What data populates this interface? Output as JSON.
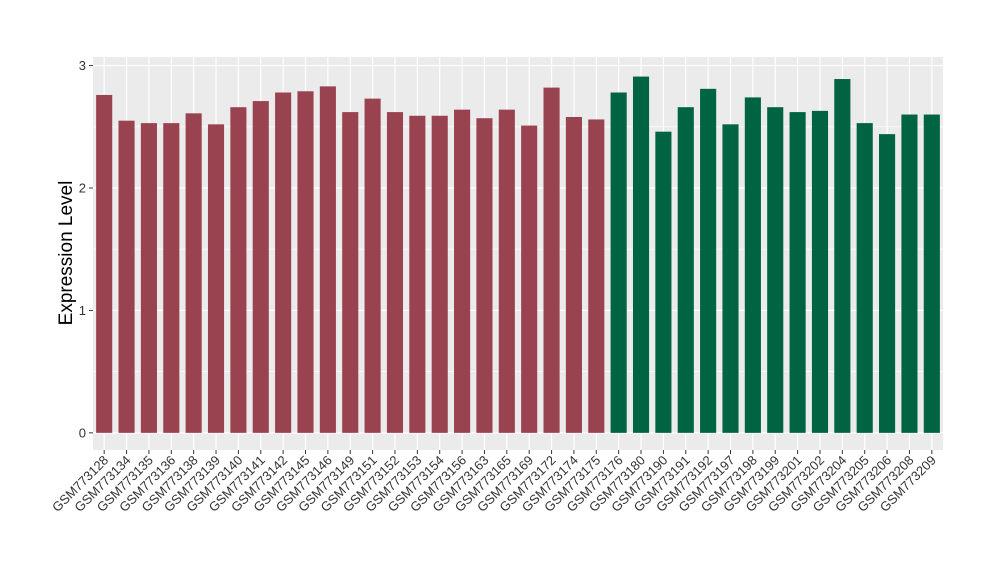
{
  "chart_data": {
    "type": "bar",
    "ylabel": "Expression Level",
    "xlabel": "",
    "ylim": [
      -0.14,
      3.07
    ],
    "yticks": [
      0,
      1,
      2,
      3
    ],
    "ytick_labels": [
      "0",
      "1",
      "2",
      "3"
    ],
    "grid": true,
    "legend": "none",
    "colors": {
      "group1": "#9a4350",
      "group2": "#006341",
      "panel_bg": "#ebebeb",
      "grid": "#ffffff"
    },
    "categories": [
      "GSM773128",
      "GSM773134",
      "GSM773135",
      "GSM773136",
      "GSM773138",
      "GSM773139",
      "GSM773140",
      "GSM773141",
      "GSM773142",
      "GSM773145",
      "GSM773146",
      "GSM773149",
      "GSM773151",
      "GSM773152",
      "GSM773153",
      "GSM773154",
      "GSM773156",
      "GSM773163",
      "GSM773165",
      "GSM773169",
      "GSM773172",
      "GSM773174",
      "GSM773175",
      "GSM773176",
      "GSM773180",
      "GSM773190",
      "GSM773191",
      "GSM773192",
      "GSM773197",
      "GSM773198",
      "GSM773199",
      "GSM773201",
      "GSM773202",
      "GSM773204",
      "GSM773205",
      "GSM773206",
      "GSM773208",
      "GSM773209"
    ],
    "values": [
      2.76,
      2.55,
      2.53,
      2.53,
      2.61,
      2.52,
      2.66,
      2.71,
      2.78,
      2.79,
      2.83,
      2.62,
      2.73,
      2.62,
      2.59,
      2.59,
      2.64,
      2.57,
      2.64,
      2.51,
      2.82,
      2.58,
      2.56,
      2.78,
      2.91,
      2.46,
      2.66,
      2.81,
      2.52,
      2.74,
      2.66,
      2.62,
      2.63,
      2.89,
      2.53,
      2.44,
      2.6,
      2.6
    ],
    "bar_groups": [
      "group1",
      "group1",
      "group1",
      "group1",
      "group1",
      "group1",
      "group1",
      "group1",
      "group1",
      "group1",
      "group1",
      "group1",
      "group1",
      "group1",
      "group1",
      "group1",
      "group1",
      "group1",
      "group1",
      "group1",
      "group1",
      "group1",
      "group1",
      "group2",
      "group2",
      "group2",
      "group2",
      "group2",
      "group2",
      "group2",
      "group2",
      "group2",
      "group2",
      "group2",
      "group2",
      "group2",
      "group2",
      "group2"
    ]
  }
}
